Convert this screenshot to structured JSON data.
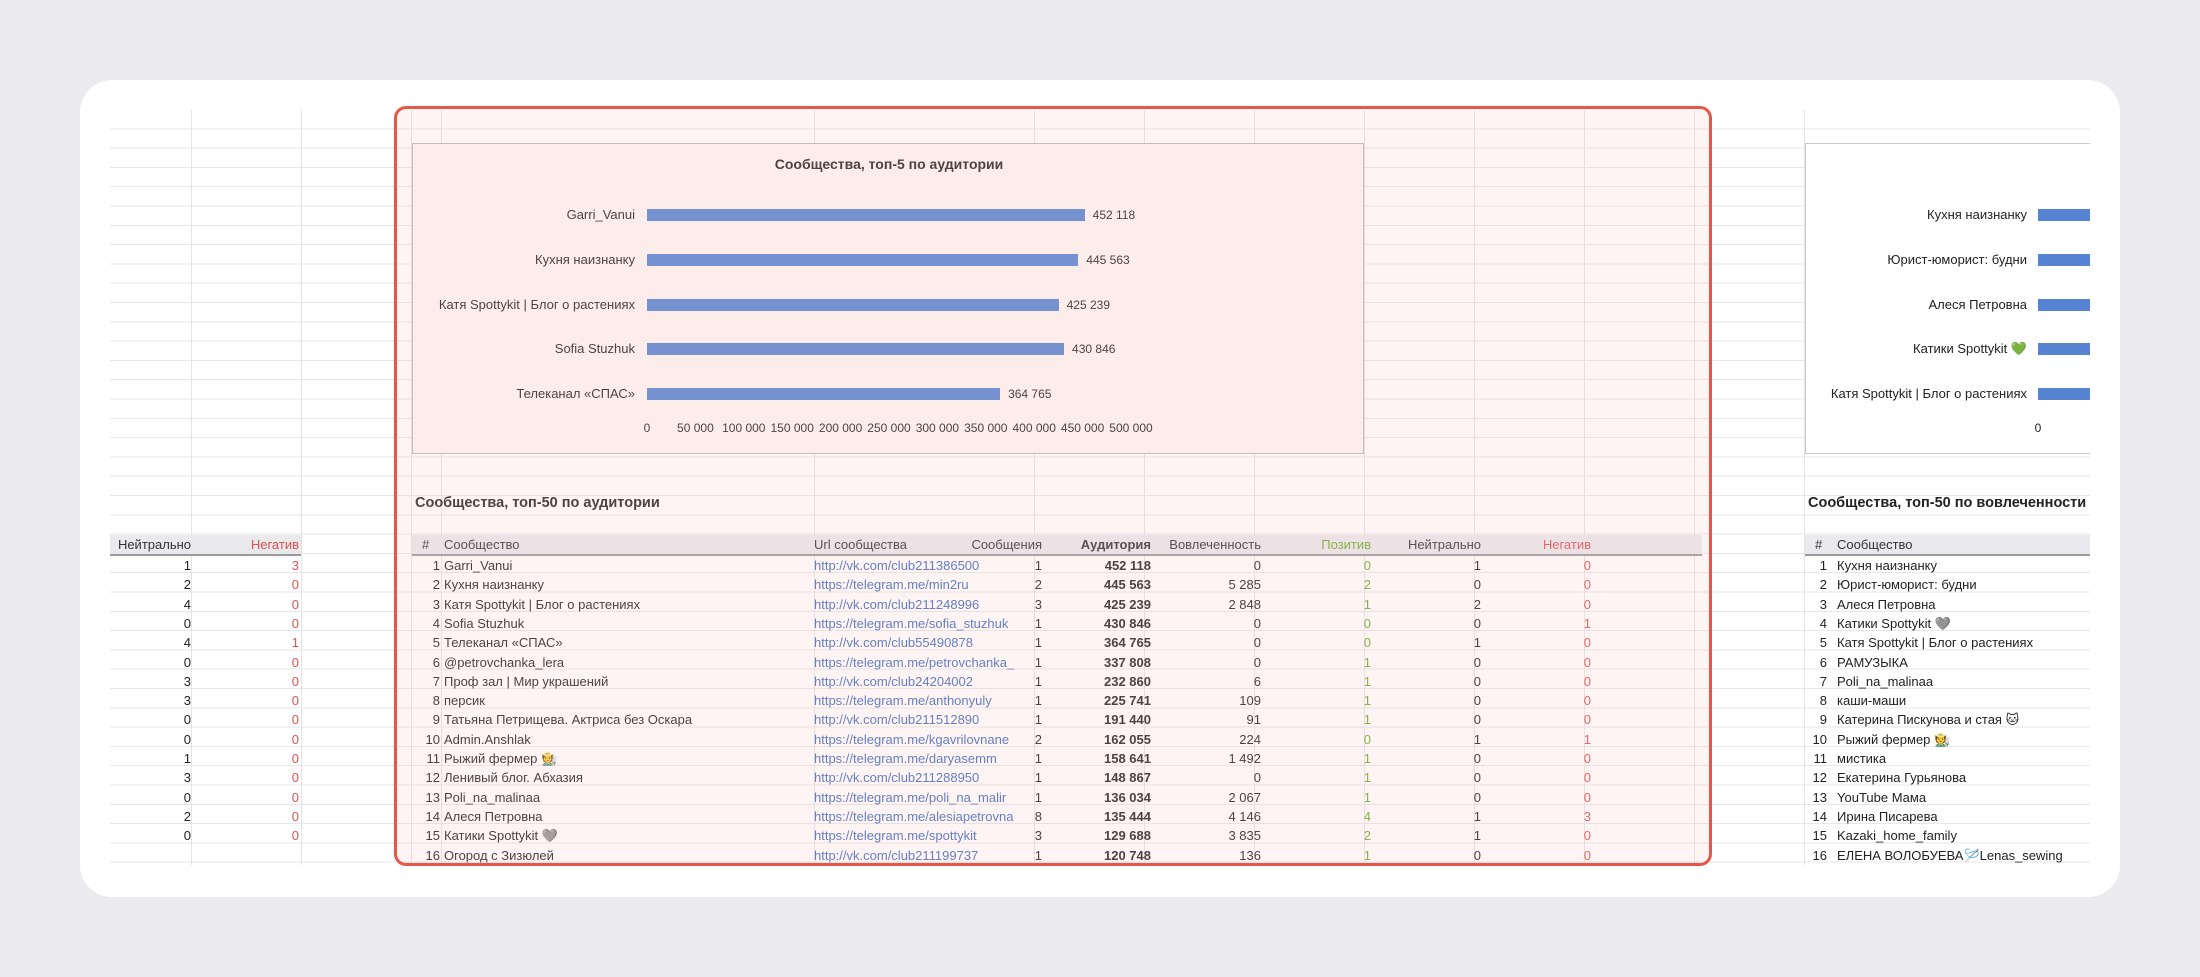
{
  "left_sheet": {
    "header": {
      "neutral": "Нейтрально",
      "negative": "Негатив"
    },
    "rows": [
      [
        "1",
        "3"
      ],
      [
        "2",
        "0"
      ],
      [
        "4",
        "0"
      ],
      [
        "0",
        "0"
      ],
      [
        "4",
        "1"
      ],
      [
        "0",
        "0"
      ],
      [
        "3",
        "0"
      ],
      [
        "3",
        "0"
      ],
      [
        "0",
        "0"
      ],
      [
        "0",
        "0"
      ],
      [
        "1",
        "0"
      ],
      [
        "3",
        "0"
      ],
      [
        "0",
        "0"
      ],
      [
        "2",
        "0"
      ],
      [
        "0",
        "0"
      ]
    ]
  },
  "main_chart": {
    "title": "Сообщества, топ-5 по аудитории",
    "chart_data": {
      "type": "bar",
      "orientation": "horizontal",
      "title": "Сообщества, топ-5 по аудитории",
      "categories": [
        "Garri_Vanui",
        "Кухня наизнанку",
        "Катя Spottykit | Блог о растениях",
        "Sofia Stuzhuk",
        "Телеканал «СПАС»"
      ],
      "values": [
        452118,
        445563,
        425239,
        430846,
        364765
      ],
      "value_labels": [
        "452 118",
        "445 563",
        "425 239",
        "430 846",
        "364 765"
      ],
      "xlim": [
        0,
        500000
      ],
      "ticks": [
        "0",
        "50 000",
        "100 000",
        "150 000",
        "200 000",
        "250 000",
        "300 000",
        "350 000",
        "400 000",
        "450 000",
        "500 000"
      ],
      "color": "#5684d2"
    }
  },
  "main_table": {
    "title": "Сообщества, топ-50 по аудитории",
    "headers": {
      "num": "#",
      "community": "Сообщество",
      "url": "Url сообщества",
      "mentions": "Сообщения",
      "audience": "Аудитория",
      "engagement": "Вовлеченность",
      "positive": "Позитив",
      "neutral": "Нейтрально",
      "negative": "Негатив"
    },
    "rows": [
      {
        "n": "1",
        "name": "Garri_Vanui",
        "url": "http://vk.com/club211386500",
        "m": "1",
        "a": "452 118",
        "e": "0",
        "p": "0",
        "ne": "1",
        "ng": "0"
      },
      {
        "n": "2",
        "name": "Кухня наизнанку",
        "url": "https://telegram.me/min2ru",
        "m": "2",
        "a": "445 563",
        "e": "5 285",
        "p": "2",
        "ne": "0",
        "ng": "0"
      },
      {
        "n": "3",
        "name": "Катя Spottykit | Блог о растениях",
        "url": "http://vk.com/club211248996",
        "m": "3",
        "a": "425 239",
        "e": "2 848",
        "p": "1",
        "ne": "2",
        "ng": "0"
      },
      {
        "n": "4",
        "name": "Sofia Stuzhuk",
        "url": "https://telegram.me/sofia_stuzhuk",
        "m": "1",
        "a": "430 846",
        "e": "0",
        "p": "0",
        "ne": "0",
        "ng": "1"
      },
      {
        "n": "5",
        "name": "Телеканал «СПАС»",
        "url": "http://vk.com/club55490878",
        "m": "1",
        "a": "364 765",
        "e": "0",
        "p": "0",
        "ne": "1",
        "ng": "0"
      },
      {
        "n": "6",
        "name": " @petrovchanka_lera",
        "url": "https://telegram.me/petrovchanka_",
        "m": "1",
        "a": "337 808",
        "e": "0",
        "p": "1",
        "ne": "0",
        "ng": "0"
      },
      {
        "n": "7",
        "name": "Проф зал | Мир украшений",
        "url": "http://vk.com/club24204002",
        "m": "1",
        "a": "232 860",
        "e": "6",
        "p": "1",
        "ne": "0",
        "ng": "0"
      },
      {
        "n": "8",
        "name": "персик",
        "url": "https://telegram.me/anthonyuly",
        "m": "1",
        "a": "225 741",
        "e": "109",
        "p": "1",
        "ne": "0",
        "ng": "0"
      },
      {
        "n": "9",
        "name": "Татьяна Петрищева. Актриса без Оскара",
        "url": "http://vk.com/club211512890",
        "m": "1",
        "a": "191 440",
        "e": "91",
        "p": "1",
        "ne": "0",
        "ng": "0"
      },
      {
        "n": "10",
        "name": "Admin.Anshlak",
        "url": "https://telegram.me/kgavrilovnane",
        "m": "2",
        "a": "162 055",
        "e": "224",
        "p": "0",
        "ne": "1",
        "ng": "1"
      },
      {
        "n": "11",
        "name": "Рыжий фермер 🧑‍🌾",
        "url": "https://telegram.me/daryasemm",
        "m": "1",
        "a": "158 641",
        "e": "1 492",
        "p": "1",
        "ne": "0",
        "ng": "0"
      },
      {
        "n": "12",
        "name": "Ленивый блог. Абхазия",
        "url": "http://vk.com/club211288950",
        "m": "1",
        "a": "148 867",
        "e": "0",
        "p": "1",
        "ne": "0",
        "ng": "0"
      },
      {
        "n": "13",
        "name": "Poli_na_malinaa",
        "url": "https://telegram.me/poli_na_malir",
        "m": "1",
        "a": "136 034",
        "e": "2 067",
        "p": "1",
        "ne": "0",
        "ng": "0"
      },
      {
        "n": "14",
        "name": "Алеся Петровна",
        "url": "https://telegram.me/alesiapetrovna",
        "m": "8",
        "a": "135 444",
        "e": "4 146",
        "p": "4",
        "ne": "1",
        "ng": "3"
      },
      {
        "n": "15",
        "name": "Катики Spottykit 🩶",
        "url": "https://telegram.me/spottykit",
        "m": "3",
        "a": "129 688",
        "e": "3 835",
        "p": "2",
        "ne": "1",
        "ng": "0"
      },
      {
        "n": "16",
        "name": "Огород с Зизюлей",
        "url": "http://vk.com/club211199737",
        "m": "1",
        "a": "120 748",
        "e": "136",
        "p": "1",
        "ne": "0",
        "ng": "0"
      }
    ]
  },
  "right_chart": {
    "chart_data": {
      "type": "bar",
      "orientation": "horizontal",
      "categories": [
        "Кухня наизнанку",
        "Юрист-юморист: будни",
        "Алеся Петровна",
        "Катики Spottykit 💚",
        "Катя Spottykit | Блог о растениях"
      ],
      "ticks": [
        "0"
      ],
      "color": "#5684d2"
    }
  },
  "right_table": {
    "title": "Сообщества, топ-50 по вовлеченности",
    "headers": {
      "num": "#",
      "community": "Сообщество"
    },
    "rows": [
      {
        "n": "1",
        "name": "Кухня наизнанку"
      },
      {
        "n": "2",
        "name": "Юрист-юморист: будни"
      },
      {
        "n": "3",
        "name": "Алеся Петровна"
      },
      {
        "n": "4",
        "name": "Катики Spottykit 🩶"
      },
      {
        "n": "5",
        "name": "Катя Spottykit | Блог о растениях"
      },
      {
        "n": "6",
        "name": "РАМУЗЫКА"
      },
      {
        "n": "7",
        "name": "Poli_na_malinaa"
      },
      {
        "n": "8",
        "name": "каши-маши"
      },
      {
        "n": "9",
        "name": "Катерина Пискунова и стая 🐱"
      },
      {
        "n": "10",
        "name": "Рыжий фермер 🧑‍🌾"
      },
      {
        "n": "11",
        "name": "мистика"
      },
      {
        "n": "12",
        "name": "Екатерина Гурьянова"
      },
      {
        "n": "13",
        "name": "YouTube Мама"
      },
      {
        "n": "14",
        "name": "Ирина Писарева"
      },
      {
        "n": "15",
        "name": "Kazaki_home_family"
      },
      {
        "n": "16",
        "name": "ЕЛЕНА ВОЛОБУЕВА🪡Lenas_sewing"
      }
    ]
  }
}
